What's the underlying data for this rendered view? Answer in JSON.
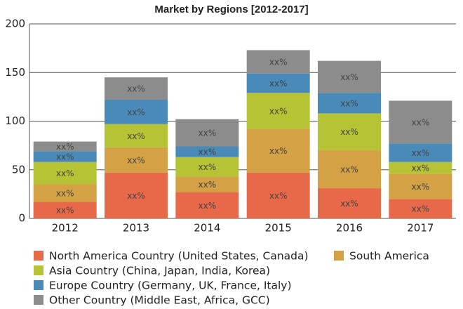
{
  "chart_data": {
    "type": "stacked-bar",
    "title": "Market by Regions [2012-2017]",
    "categories": [
      "2012",
      "2013",
      "2014",
      "2015",
      "2016",
      "2017"
    ],
    "series": [
      {
        "name": "North America Country (United States, Canada)",
        "color": "#e8684a",
        "values": [
          17,
          47,
          27,
          47,
          31,
          20
        ],
        "value_labels": [
          "xx%",
          "xx%",
          "xx%",
          "xx%",
          "xx%",
          "xx%"
        ]
      },
      {
        "name": "South America",
        "color": "#d4a144",
        "values": [
          18,
          26,
          16,
          45,
          39,
          26
        ],
        "value_labels": [
          "xx%",
          "xx%",
          "xx%",
          "xx%",
          "xx%",
          "xx%"
        ]
      },
      {
        "name": "Asia Country (China, Japan, India, Korea)",
        "color": "#b5c334",
        "values": [
          23,
          24,
          20,
          37,
          38,
          12
        ],
        "value_labels": [
          "xx%",
          "xx%",
          "xx%",
          "xx%",
          "xx%",
          "xx%"
        ]
      },
      {
        "name": "Europe Country (Germany, UK, France, Italy)",
        "color": "#4a8ab8",
        "values": [
          11,
          25,
          11,
          20,
          21,
          19
        ],
        "value_labels": [
          "xx%",
          "xx%",
          "xx%",
          "xx%",
          "xx%",
          "xx%"
        ]
      },
      {
        "name": "Other Country (Middle East, Africa, GCC)",
        "color": "#8c8c8c",
        "values": [
          10,
          23,
          28,
          24,
          33,
          44
        ],
        "value_labels": [
          "xx%",
          "xx%",
          "xx%",
          "xx%",
          "xx%",
          "xx%"
        ]
      }
    ],
    "ylim": [
      0,
      200
    ],
    "yticks": [
      0,
      50,
      100,
      150,
      200
    ],
    "grid": true,
    "legend": "bottom"
  }
}
